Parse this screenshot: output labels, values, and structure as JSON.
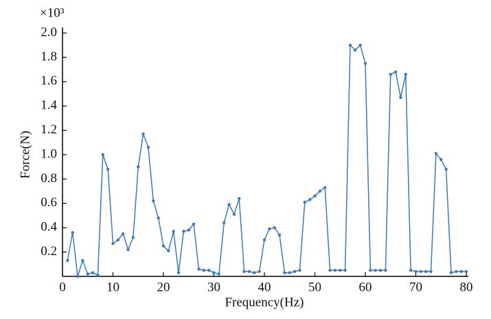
{
  "chart_data": {
    "type": "line",
    "multiplier": "×10³",
    "x_label": "Frequency(Hz)",
    "y_label": "Force(N)",
    "x": [
      1,
      2,
      3,
      4,
      5,
      6,
      7,
      8,
      9,
      10,
      11,
      12,
      13,
      14,
      15,
      16,
      17,
      18,
      19,
      20,
      21,
      22,
      23,
      24,
      25,
      26,
      27,
      28,
      29,
      30,
      31,
      32,
      33,
      34,
      35,
      36,
      37,
      38,
      39,
      40,
      41,
      42,
      43,
      44,
      45,
      46,
      47,
      48,
      49,
      50,
      51,
      52,
      53,
      54,
      55,
      56,
      57,
      58,
      59,
      60,
      61,
      62,
      63,
      64,
      65,
      66,
      67,
      68,
      69,
      70,
      71,
      72,
      73,
      74,
      75,
      76,
      77,
      78,
      79,
      80
    ],
    "series": [
      {
        "color": "#3a78c2",
        "values": [
          0.13,
          0.36,
          0.0,
          0.13,
          0.02,
          0.03,
          0.01,
          1.0,
          0.88,
          0.27,
          0.3,
          0.35,
          0.22,
          0.32,
          0.9,
          1.17,
          1.06,
          0.62,
          0.48,
          0.25,
          0.21,
          0.37,
          0.03,
          0.37,
          0.38,
          0.43,
          0.06,
          0.05,
          0.05,
          0.03,
          0.02,
          0.44,
          0.59,
          0.51,
          0.64,
          0.04,
          0.04,
          0.03,
          0.04,
          0.3,
          0.39,
          0.4,
          0.34,
          0.03,
          0.03,
          0.04,
          0.05,
          0.61,
          0.63,
          0.66,
          0.7,
          0.73,
          0.05,
          0.05,
          0.05,
          0.05,
          1.9,
          1.86,
          1.9,
          1.75,
          0.05,
          0.05,
          0.05,
          0.05,
          1.66,
          1.68,
          1.47,
          1.66,
          0.05,
          0.04,
          0.04,
          0.04,
          0.04,
          1.01,
          0.96,
          0.88,
          0.03,
          0.04,
          0.04,
          0.04
        ]
      }
    ],
    "xlim": [
      0,
      80
    ],
    "xticks": [
      0,
      10,
      20,
      30,
      40,
      50,
      60,
      70,
      80
    ],
    "ylim": [
      0,
      2
    ],
    "yticks": [
      0.2,
      0.4,
      0.6,
      0.8,
      {
        "value": 1,
        "label": "1.0"
      },
      1.2,
      1.4,
      1.6,
      1.8,
      {
        "value": 2,
        "label": "2.0"
      }
    ]
  }
}
